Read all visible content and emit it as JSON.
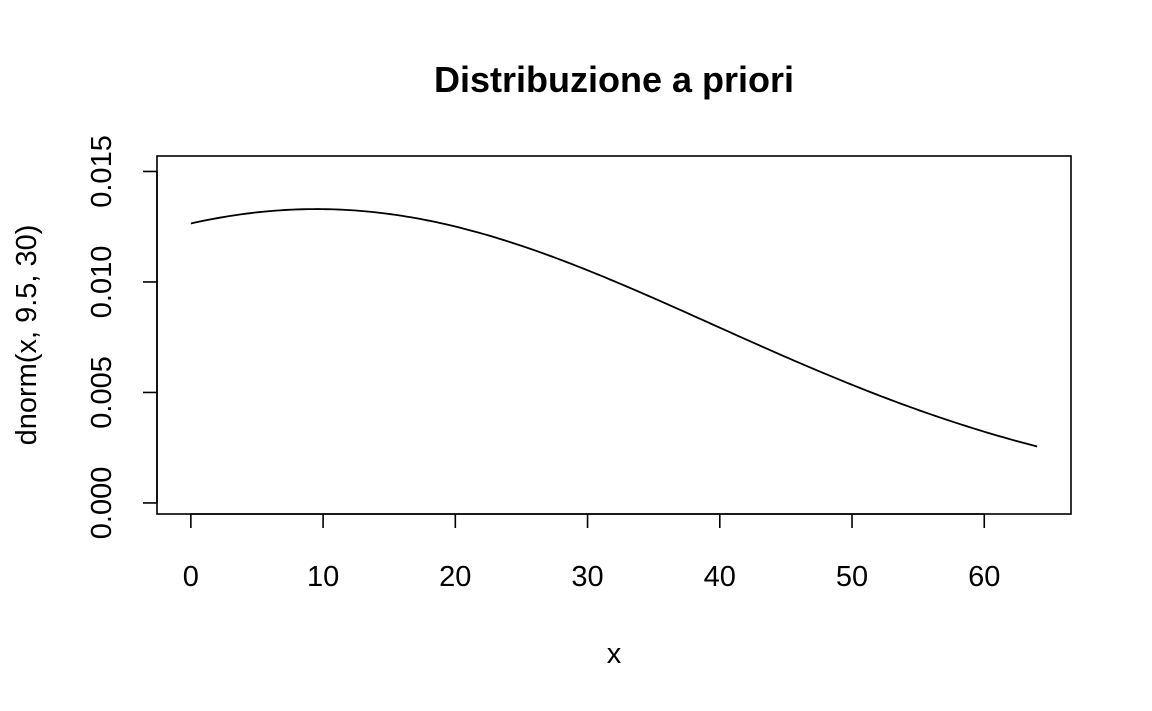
{
  "chart_data": {
    "type": "line",
    "title": "Distribuzione a priori",
    "xlabel": "x",
    "ylabel": "dnorm(x, 9.5, 30)",
    "function": {
      "name": "dnorm",
      "mean": 9.5,
      "sd": 30
    },
    "x_range": [
      0,
      64
    ],
    "xlim": [
      -2.56,
      66.56
    ],
    "ylim": [
      -0.0005,
      0.0157
    ],
    "x_ticks": [
      0,
      10,
      20,
      30,
      40,
      50,
      60
    ],
    "x_tick_labels": [
      "0",
      "10",
      "20",
      "30",
      "40",
      "50",
      "60"
    ],
    "y_ticks": [
      0.0,
      0.005,
      0.01,
      0.015
    ],
    "y_tick_labels": [
      "0.000",
      "0.005",
      "0.010",
      "0.015"
    ],
    "x": [
      0,
      4,
      8,
      9.5,
      12,
      16,
      20,
      24,
      28,
      32,
      36,
      40,
      44,
      48,
      52,
      56,
      60,
      64
    ],
    "y": [
      0.01265,
      0.01312,
      0.01328,
      0.0133,
      0.01325,
      0.01299,
      0.01256,
      0.01181,
      0.01096,
      0.00999,
      0.00894,
      0.00789,
      0.00684,
      0.00584,
      0.00489,
      0.00403,
      0.00328,
      0.00254
    ],
    "grid": false,
    "legend": "none"
  }
}
